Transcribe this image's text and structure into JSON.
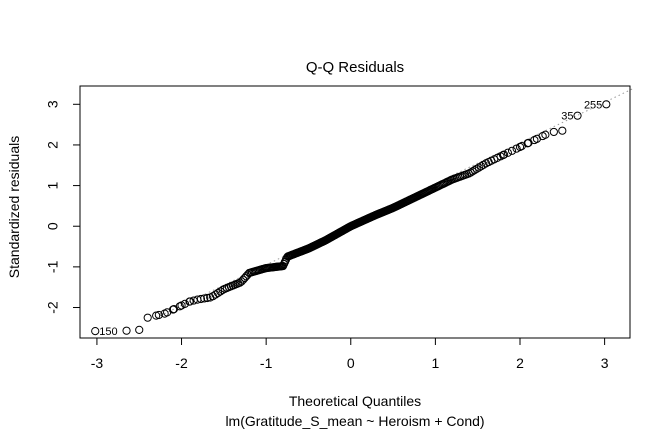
{
  "chart_data": {
    "type": "scatter",
    "title": "Q-Q Residuals",
    "xlabel": "Theoretical Quantiles",
    "ylabel": "Standardized residuals",
    "subtitle": "lm(Gratitude_S_mean ~ Heroism + Cond)",
    "xlim": [
      -3.2,
      3.3
    ],
    "ylim": [
      -2.75,
      3.45
    ],
    "xticks": [
      -3,
      -2,
      -1,
      0,
      1,
      2,
      3
    ],
    "yticks": [
      -2,
      -1,
      0,
      1,
      2,
      3
    ],
    "grid": false,
    "legend": "none",
    "reference_line": {
      "style": "dotted",
      "intercept": 0.05,
      "slope": 1.0
    },
    "labeled_points": [
      {
        "label": "150",
        "x": -3.02,
        "y": -2.58
      },
      {
        "label": "35",
        "x": 2.68,
        "y": 2.72
      },
      {
        "label": "255",
        "x": 3.02,
        "y": 3.0
      }
    ],
    "sample_size": 300,
    "anchors": {
      "x": [
        -3.02,
        -2.65,
        -2.5,
        -2.4,
        -2.3,
        -2.2,
        -2.1,
        -2.0,
        -1.9,
        -1.8,
        -1.65,
        -1.5,
        -1.3,
        -1.2,
        -1.0,
        -0.8,
        -0.75,
        -0.5,
        -0.3,
        0,
        0.3,
        0.5,
        0.7,
        1.0,
        1.2,
        1.4,
        1.6,
        1.8,
        2.0,
        2.1,
        2.2,
        2.3,
        2.4,
        2.5,
        2.68,
        3.02
      ],
      "y": [
        -2.58,
        -2.57,
        -2.55,
        -2.25,
        -2.2,
        -2.15,
        -2.05,
        -1.95,
        -1.85,
        -1.8,
        -1.75,
        -1.55,
        -1.38,
        -1.15,
        -1.03,
        -0.98,
        -0.75,
        -0.55,
        -0.35,
        0.0,
        0.28,
        0.45,
        0.65,
        0.95,
        1.15,
        1.3,
        1.55,
        1.75,
        1.95,
        2.05,
        2.15,
        2.25,
        2.32,
        2.35,
        2.72,
        3.0
      ]
    }
  }
}
